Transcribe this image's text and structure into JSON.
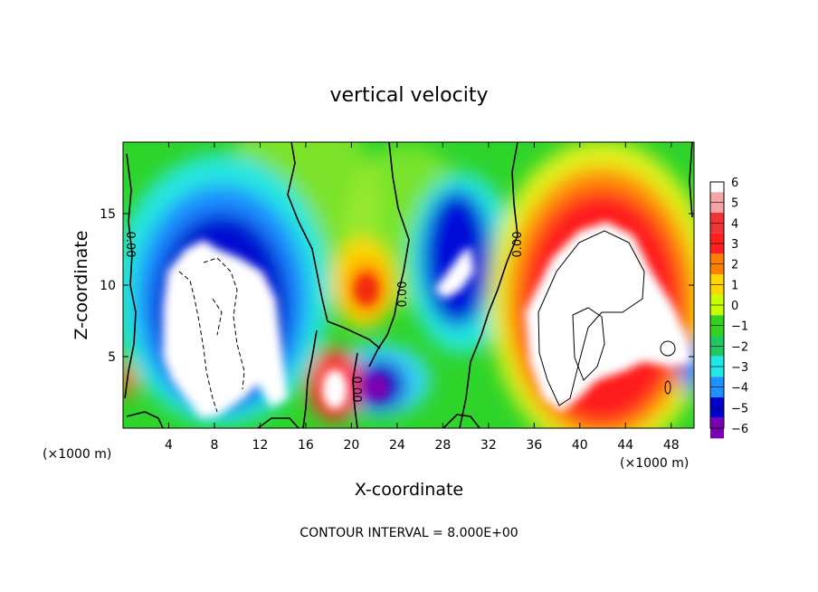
{
  "chart_data": {
    "type": "heatmap",
    "title": "vertical velocity",
    "xlabel": "X-coordinate",
    "ylabel": "Z-coordinate",
    "x_unit_left": "(×1000 m)",
    "x_unit_right": "(×1000 m)",
    "xlim": [
      0,
      50
    ],
    "ylim": [
      0,
      20
    ],
    "x_ticks": [
      "4",
      "8",
      "12",
      "16",
      "20",
      "24",
      "28",
      "32",
      "36",
      "40",
      "44",
      "48"
    ],
    "y_ticks": [
      "5",
      "10",
      "15"
    ],
    "colorbar": {
      "labels": [
        "6",
        "5",
        "4",
        "3",
        "2",
        "1",
        "0",
        "−1",
        "−2",
        "−3",
        "−4",
        "−5",
        "−6"
      ],
      "colors": [
        "#ffffff",
        "#f4a6a6",
        "#f03434",
        "#ff2020",
        "#ff7f00",
        "#ffd700",
        "#c8ff00",
        "#32d21e",
        "#20c864",
        "#20e8e8",
        "#1e90ff",
        "#0000cd",
        "#7b00b4"
      ]
    },
    "contour_labels": [
      "0.00",
      "0.00",
      "0.00",
      "0.00"
    ],
    "contour_interval": "CONTOUR INTERVAL = 8.000E+00",
    "features": [
      {
        "kind": "downdraft",
        "x": 8.5,
        "z": 9,
        "rx": 5.5,
        "rz": 6.5
      },
      {
        "kind": "downdraft",
        "x": 29,
        "z": 13,
        "rx": 2.2,
        "rz": 4
      },
      {
        "kind": "downdraft",
        "x": 22,
        "z": 3,
        "rx": 1.8,
        "rz": 2
      },
      {
        "kind": "updraft",
        "x": 42,
        "z": 10,
        "rx": 7,
        "rz": 7
      },
      {
        "kind": "updraft",
        "x": 21.5,
        "z": 10,
        "rx": 2.2,
        "rz": 3
      },
      {
        "kind": "updraft",
        "x": 19,
        "z": 3,
        "rx": 1.6,
        "rz": 2.3
      }
    ]
  }
}
